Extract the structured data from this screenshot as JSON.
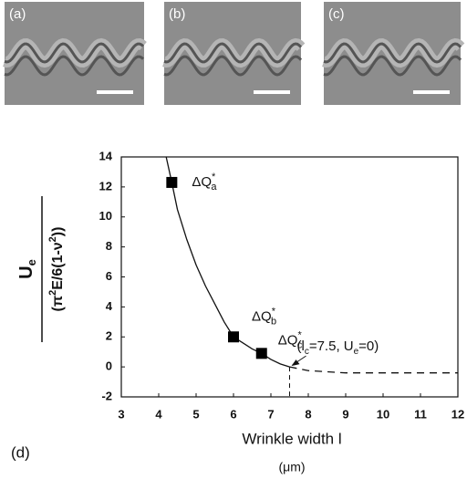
{
  "panels": [
    "(a)",
    "(b)",
    "(c)"
  ],
  "chart_data": {
    "type": "line",
    "panel_label": "(d)",
    "x_label": "Wrinkle width l",
    "x_unit": "(μm)",
    "y_label": {
      "numerator": {
        "text": "U",
        "sub": "e"
      },
      "denominator": {
        "a": "(π",
        "sup1": "2",
        "b": "E/6(1-ν",
        "sup2": "2",
        "c": "))"
      }
    },
    "xlim": [
      3,
      12
    ],
    "xticks": [
      3,
      4,
      5,
      6,
      7,
      8,
      9,
      10,
      11,
      12
    ],
    "ylim": [
      -2,
      14
    ],
    "yticks": [
      -2,
      0,
      2,
      4,
      6,
      8,
      10,
      12,
      14
    ],
    "curve": {
      "x": [
        4.2,
        4.35,
        4.5,
        4.75,
        5,
        5.25,
        5.5,
        5.75,
        6,
        6.25,
        6.5,
        6.75,
        7,
        7.25,
        7.5
      ],
      "values": [
        14,
        12.3,
        10.5,
        8.5,
        6.8,
        5.4,
        4.2,
        3,
        2,
        1.6,
        1.2,
        0.9,
        0.5,
        0.2,
        0
      ]
    },
    "extrapolation": {
      "x": [
        7.5,
        8,
        9,
        10,
        11,
        12
      ],
      "values": [
        0,
        -0.25,
        -0.4,
        -0.4,
        -0.4,
        -0.4
      ]
    },
    "points": {
      "x": [
        4.35,
        6,
        6.75
      ],
      "values": [
        12.3,
        2,
        0.9
      ],
      "labels": [
        {
          "text": "ΔQ",
          "sup": "*",
          "sub": "a"
        },
        {
          "text": "ΔQ",
          "sup": "*",
          "sub": "b"
        },
        {
          "text": "ΔQ",
          "sup": "*",
          "sub": "c"
        }
      ]
    },
    "critical": {
      "x": 7.5,
      "value": 0,
      "label": {
        "a": "(l",
        "sub1": "c",
        "b": "=7.5, U",
        "sub2": "e",
        "c": "=0)"
      }
    }
  }
}
